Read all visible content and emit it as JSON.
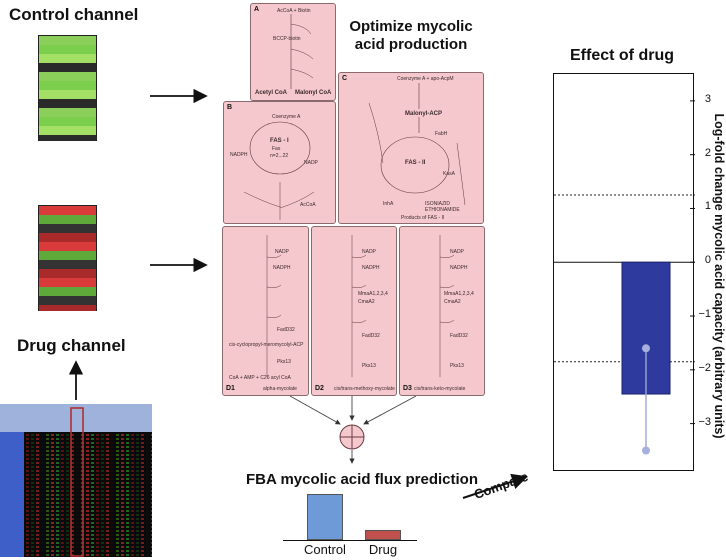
{
  "control_channel": {
    "label": "Control channel"
  },
  "drug_channel": {
    "label": "Drug channel"
  },
  "pathway": {
    "title": "Optimize mycolic acid production",
    "panels": [
      "A",
      "B",
      "C",
      "D1",
      "D2",
      "D3"
    ],
    "panel_a_texts": [
      "AcCoA + Biotin",
      "BCCP-biotin",
      "Malonyl CoA",
      "Acetyl CoA"
    ],
    "panel_b_texts": [
      "FAS - I",
      "Fas",
      "n=2...22",
      "Coenzyme A",
      "NADPH",
      "NADP",
      "AcCoA"
    ],
    "panel_c_texts": [
      "Coenzyme A + apo-AcpM",
      "Malonyl-ACP",
      "FAS - II",
      "KasA",
      "FabH",
      "Products of FAS - II",
      "InhA",
      "ISONIAZID ETHIONAMIDE"
    ],
    "d1_texts": [
      "NADP",
      "NADPH",
      "cis-cyclopropyl-meromycolyl-ACP",
      "Pks13",
      "FadD32",
      "CoA + AMP + C26 acyl CoA",
      "alpha-mycolate"
    ],
    "d2_texts": [
      "NADP",
      "NADPH",
      "MmaA1,2,3,4",
      "CmaA2",
      "Pks13",
      "FadD32",
      "cis/trans-methoxy-mycolate"
    ],
    "d3_texts": [
      "NADP",
      "NADPH",
      "MmaA1,2,3,4",
      "CmaA2",
      "Pks13",
      "FadD32",
      "cis/trans-keto-mycolate"
    ]
  },
  "fba": {
    "title": "FBA mycolic acid flux prediction",
    "compare_label": "Compare"
  },
  "effect": {
    "title": "Effect of drug",
    "ylabel": "Log-fold change mycolic acid capacity (arbitrary units)"
  },
  "chart_data": [
    {
      "type": "bar",
      "title": "FBA mycolic acid flux prediction",
      "categories": [
        "Control",
        "Drug"
      ],
      "values": [
        1.0,
        0.22
      ],
      "colors": [
        "#6e9bd8",
        "#c0504d"
      ],
      "xlabel": "",
      "ylabel": ""
    },
    {
      "type": "bar",
      "title": "Effect of drug",
      "categories": [
        ""
      ],
      "values": [
        -2.45
      ],
      "bar_color": "#2e3a9e",
      "ylabel": "Log-fold change mycolic acid capacity (arbitrary units)",
      "ylim": [
        -3.9,
        3.5
      ],
      "yticks": [
        -3,
        -2,
        -1,
        0,
        1,
        2,
        3
      ],
      "reference_lines": [
        1.25,
        -1.85
      ],
      "error_points": [
        -1.6,
        -3.5
      ]
    }
  ]
}
